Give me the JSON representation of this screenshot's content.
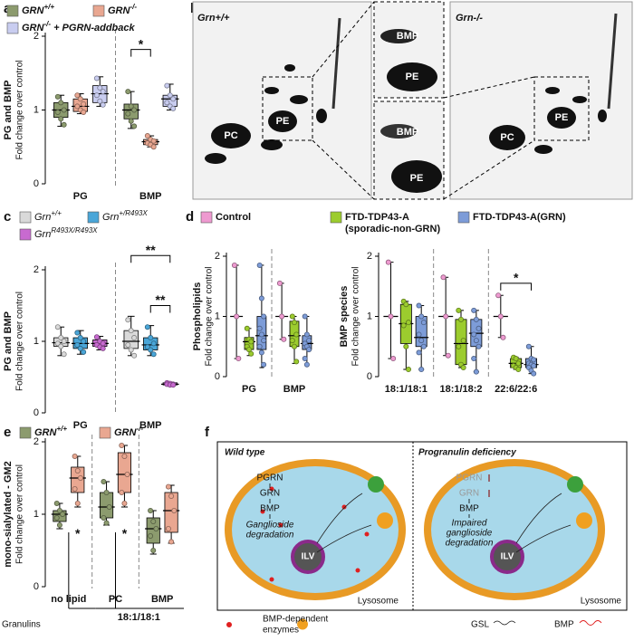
{
  "panel_labels": [
    "a",
    "b",
    "c",
    "d",
    "e",
    "f"
  ],
  "blots": {
    "left_genotype": "Grn+/+",
    "right_genotype": "Grn-/-",
    "left_labels": [
      "PC",
      "PE"
    ],
    "zoom_top_labels": [
      "BMP",
      "PE"
    ],
    "zoom_bottom_labels": [
      "BMP",
      "PE"
    ],
    "right_labels": [
      "PC",
      "PE"
    ]
  },
  "diagram": {
    "left_title": "Wild type",
    "right_title": "Progranulin deficiency",
    "left_steps": [
      "PGRN",
      "GRN",
      "BMP",
      "Ganglioside",
      "degradation"
    ],
    "right_steps": [
      "PGRN",
      "GRN",
      "BMP",
      "Impaired",
      "ganglioside",
      "degradation"
    ],
    "ilv": "ILV",
    "lysosome": "Lysosome",
    "legend": [
      "Granulins",
      "BMP-dependent",
      "enzymes",
      "GSL",
      "BMP"
    ]
  },
  "chart_data": [
    {
      "type": "box",
      "ylabel": "PG and BMP",
      "ylabel2": "Fold change over control",
      "categories": [
        "PG",
        "BMP"
      ],
      "ylim": [
        0,
        2
      ],
      "yticks": [
        0,
        1,
        2
      ],
      "annotations": [
        {
          "text": "*"
        }
      ],
      "series": [
        {
          "name": "GRN",
          "name_sup": "+/+",
          "color": "#8c9b6e",
          "boxes": [
            {
              "min": 0.78,
              "q1": 0.9,
              "median": 1.0,
              "q3": 1.1,
              "max": 1.2,
              "points": [
                1.18,
                1.1,
                1.0,
                0.97,
                0.88,
                0.8
              ]
            },
            {
              "min": 0.75,
              "q1": 0.88,
              "median": 1.0,
              "q3": 1.08,
              "max": 1.25,
              "points": [
                1.25,
                1.05,
                1.0,
                0.95,
                0.85,
                0.78
              ]
            }
          ]
        },
        {
          "name": "GRN",
          "name_sup": "-/-",
          "color": "#e9a791",
          "boxes": [
            {
              "min": 0.95,
              "q1": 0.98,
              "median": 1.05,
              "q3": 1.15,
              "max": 1.22,
              "points": [
                1.2,
                1.15,
                1.08,
                1.05,
                1.0,
                0.97
              ]
            },
            {
              "min": 0.5,
              "q1": 0.53,
              "median": 0.57,
              "q3": 0.6,
              "max": 0.65,
              "points": [
                0.65,
                0.6,
                0.58,
                0.55,
                0.53,
                0.5
              ]
            }
          ]
        },
        {
          "name": "GRN",
          "name_sup": "-/-",
          "name_after": " + PGRN-addback",
          "color": "#c9cdf0",
          "boxes": [
            {
              "min": 1.05,
              "q1": 1.1,
              "median": 1.22,
              "q3": 1.33,
              "max": 1.45,
              "points": [
                1.43,
                1.3,
                1.25,
                1.2,
                1.12,
                1.07
              ]
            },
            {
              "min": 1.0,
              "q1": 1.05,
              "median": 1.15,
              "q3": 1.2,
              "max": 1.35,
              "points": [
                1.33,
                1.2,
                1.15,
                1.1,
                1.05,
                1.02
              ]
            }
          ]
        }
      ]
    },
    {
      "type": "box",
      "ylabel": "PG and BMP",
      "ylabel2": "Fold change over control",
      "categories": [
        "PG",
        "BMP"
      ],
      "ylim": [
        0,
        2
      ],
      "yticks": [
        0,
        1,
        2
      ],
      "annotations": [
        {
          "text": "**"
        },
        {
          "text": "**"
        }
      ],
      "series": [
        {
          "name": "Grn",
          "name_sup": "+/+",
          "color": "#d9d9d9",
          "boxes": [
            {
              "min": 0.8,
              "q1": 0.93,
              "median": 0.98,
              "q3": 1.05,
              "max": 1.2,
              "points": [
                1.2,
                1.05,
                1.0,
                0.97,
                0.93,
                0.82
              ]
            },
            {
              "min": 0.8,
              "q1": 0.9,
              "median": 1.0,
              "q3": 1.15,
              "max": 1.35,
              "points": [
                1.3,
                1.15,
                1.05,
                0.95,
                0.88,
                0.8
              ]
            }
          ]
        },
        {
          "name": "Grn",
          "name_sup": "+/R493X",
          "color": "#4aa6d8",
          "boxes": [
            {
              "min": 0.82,
              "q1": 0.9,
              "median": 0.97,
              "q3": 1.05,
              "max": 1.15,
              "points": [
                1.12,
                1.05,
                1.0,
                0.95,
                0.9,
                0.85
              ]
            },
            {
              "min": 0.8,
              "q1": 0.88,
              "median": 0.95,
              "q3": 1.05,
              "max": 1.22,
              "points": [
                1.2,
                1.05,
                0.97,
                0.92,
                0.88,
                0.82
              ]
            }
          ]
        },
        {
          "name": "Grn",
          "name_sup": "R493X/R493X",
          "color": "#c86ad0",
          "boxes": [
            {
              "min": 0.88,
              "q1": 0.93,
              "median": 0.97,
              "q3": 1.02,
              "max": 1.07,
              "points": [
                1.06,
                1.0,
                0.97,
                0.95,
                0.92,
                0.9
              ]
            },
            {
              "min": 0.38,
              "q1": 0.39,
              "median": 0.4,
              "q3": 0.42,
              "max": 0.43,
              "points": [
                0.42,
                0.41,
                0.4,
                0.4,
                0.39,
                0.39
              ]
            }
          ]
        }
      ]
    },
    {
      "type": "box",
      "ylabel": "Phospholipids",
      "ylabel2": "Fold change over control",
      "categories": [
        "PG",
        "BMP"
      ],
      "ylim": [
        0,
        2
      ],
      "yticks": [
        0,
        1,
        2
      ],
      "series": [
        {
          "name": "Control",
          "color": "#ee9ad0",
          "boxes": [
            {
              "min": 0.3,
              "q1": 1.0,
              "median": 1.0,
              "q3": 1.0,
              "max": 1.85,
              "points": [
                1.85,
                1.0,
                0.3
              ]
            },
            {
              "min": 0.62,
              "q1": 1.0,
              "median": 1.0,
              "q3": 1.0,
              "max": 1.55,
              "points": [
                1.55,
                1.0,
                0.62
              ]
            }
          ]
        },
        {
          "name": "FTD-TDP43-A",
          "name_line2": "(sporadic-non-GRN)",
          "color": "#9ccc2e",
          "boxes": [
            {
              "min": 0.35,
              "q1": 0.45,
              "median": 0.58,
              "q3": 0.65,
              "max": 0.8,
              "points": [
                0.8,
                0.62,
                0.58,
                0.5,
                0.45,
                0.38
              ]
            },
            {
              "min": 0.22,
              "q1": 0.5,
              "median": 0.68,
              "q3": 0.92,
              "max": 1.0,
              "points": [
                1.0,
                0.9,
                0.7,
                0.6,
                0.5,
                0.25
              ]
            }
          ]
        },
        {
          "name": "FTD-TDP43-A(GRN)",
          "color": "#7d9cd8",
          "boxes": [
            {
              "min": 0.15,
              "q1": 0.45,
              "median": 0.68,
              "q3": 1.0,
              "max": 1.85,
              "points": [
                1.85,
                1.3,
                1.0,
                0.8,
                0.7,
                0.6,
                0.5,
                0.4,
                0.2
              ]
            },
            {
              "min": 0.2,
              "q1": 0.45,
              "median": 0.55,
              "q3": 0.68,
              "max": 1.0,
              "points": [
                1.0,
                0.7,
                0.6,
                0.55,
                0.5,
                0.45,
                0.3,
                0.2
              ]
            }
          ]
        }
      ]
    },
    {
      "type": "box",
      "ylabel": "BMP species",
      "ylabel2": "Fold change over control",
      "categories": [
        "18:1/18:1",
        "18:1/18:2",
        "22:6/22:6"
      ],
      "ylim": [
        0,
        2
      ],
      "yticks": [
        0,
        1,
        2
      ],
      "annotations": [
        {
          "text": "*"
        }
      ],
      "series": [
        {
          "color": "#ee9ad0",
          "boxes": [
            {
              "min": 0.3,
              "q1": 1.0,
              "median": 1.0,
              "q3": 1.0,
              "max": 1.9,
              "points": [
                1.9,
                1.0,
                0.3
              ]
            },
            {
              "min": 0.35,
              "q1": 1.0,
              "median": 1.0,
              "q3": 1.0,
              "max": 1.65,
              "points": [
                1.65,
                1.0,
                0.35
              ]
            },
            {
              "min": 0.65,
              "q1": 1.0,
              "median": 1.0,
              "q3": 1.0,
              "max": 1.35,
              "points": [
                1.35,
                1.0,
                0.65
              ]
            }
          ]
        },
        {
          "color": "#9ccc2e",
          "boxes": [
            {
              "min": 0.12,
              "q1": 0.55,
              "median": 0.88,
              "q3": 1.2,
              "max": 1.25,
              "points": [
                1.25,
                1.2,
                0.9,
                0.85,
                0.5,
                0.12
              ]
            },
            {
              "min": 0.15,
              "q1": 0.2,
              "median": 0.55,
              "q3": 0.95,
              "max": 1.1,
              "points": [
                1.1,
                0.95,
                0.6,
                0.5,
                0.2,
                0.15
              ]
            },
            {
              "min": 0.12,
              "q1": 0.15,
              "median": 0.22,
              "q3": 0.3,
              "max": 0.32,
              "points": [
                0.32,
                0.3,
                0.22,
                0.18,
                0.15,
                0.12
              ]
            }
          ]
        },
        {
          "color": "#7d9cd8",
          "boxes": [
            {
              "min": 0.12,
              "q1": 0.5,
              "median": 0.65,
              "q3": 1.0,
              "max": 1.18,
              "points": [
                1.18,
                1.0,
                0.9,
                0.7,
                0.6,
                0.5,
                0.4,
                0.12
              ]
            },
            {
              "min": 0.08,
              "q1": 0.5,
              "median": 0.72,
              "q3": 0.95,
              "max": 1.1,
              "points": [
                1.1,
                0.95,
                0.8,
                0.7,
                0.6,
                0.5,
                0.3,
                0.08
              ]
            },
            {
              "min": 0.05,
              "q1": 0.15,
              "median": 0.2,
              "q3": 0.3,
              "max": 0.5,
              "points": [
                0.5,
                0.3,
                0.28,
                0.22,
                0.2,
                0.18,
                0.15,
                0.1,
                0.05
              ]
            }
          ]
        }
      ]
    },
    {
      "type": "box",
      "ylabel": "mono-sialylated - GM2",
      "ylabel2": "Fold change over control",
      "categories": [
        "no lipid",
        "PC",
        "BMP"
      ],
      "xgroup_label": "18:1/18:1",
      "ylim": [
        0,
        2
      ],
      "yticks": [
        0,
        1,
        2
      ],
      "annotations": [
        {
          "text": "*"
        },
        {
          "text": "*"
        }
      ],
      "series": [
        {
          "name": "GRN",
          "name_sup": "+/+",
          "color": "#8c9b6e",
          "boxes": [
            {
              "min": 0.8,
              "q1": 0.9,
              "median": 1.0,
              "q3": 1.05,
              "max": 1.15,
              "points": [
                1.15,
                1.05,
                1.0,
                0.95,
                0.85
              ]
            },
            {
              "min": 0.85,
              "q1": 0.95,
              "median": 1.1,
              "q3": 1.3,
              "max": 1.45,
              "points": [
                1.45,
                1.3,
                1.1,
                0.95,
                0.88
              ]
            },
            {
              "min": 0.45,
              "q1": 0.6,
              "median": 0.8,
              "q3": 0.95,
              "max": 1.05,
              "points": [
                1.05,
                0.9,
                0.8,
                0.7,
                0.5
              ]
            }
          ]
        },
        {
          "name": "GRN",
          "name_sup": "-/-",
          "color": "#e9a791",
          "boxes": [
            {
              "min": 1.1,
              "q1": 1.3,
              "median": 1.5,
              "q3": 1.65,
              "max": 1.8,
              "points": [
                1.8,
                1.6,
                1.5,
                1.35,
                1.15
              ]
            },
            {
              "min": 1.1,
              "q1": 1.3,
              "median": 1.55,
              "q3": 1.85,
              "max": 1.95,
              "points": [
                1.95,
                1.8,
                1.55,
                1.3,
                1.15
              ]
            },
            {
              "min": 0.6,
              "q1": 0.75,
              "median": 1.05,
              "q3": 1.3,
              "max": 1.4,
              "points": [
                1.38,
                1.25,
                1.05,
                0.8,
                0.62
              ]
            }
          ]
        }
      ]
    }
  ]
}
